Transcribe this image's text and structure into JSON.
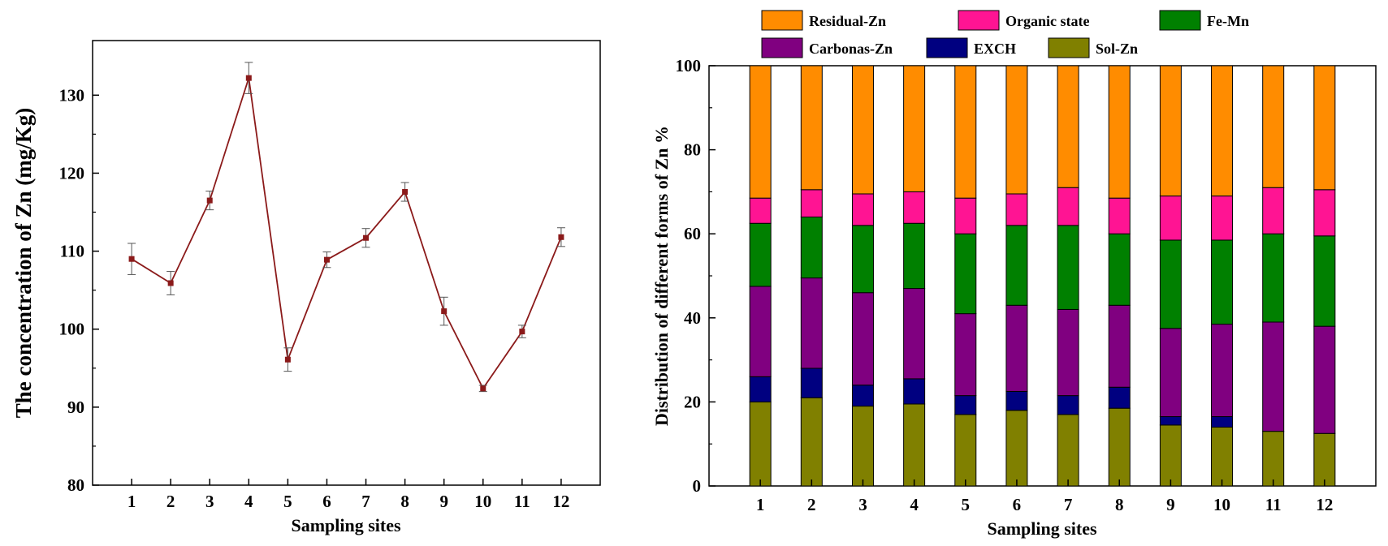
{
  "chart_data": [
    {
      "type": "line",
      "title": "",
      "xlabel": "Sampling sites",
      "ylabel": "The concentration of Zn (mg/Kg)",
      "categories": [
        "1",
        "2",
        "3",
        "4",
        "5",
        "6",
        "7",
        "8",
        "9",
        "10",
        "11",
        "12"
      ],
      "values": [
        109.0,
        105.9,
        116.5,
        132.2,
        96.1,
        108.9,
        111.7,
        117.6,
        102.3,
        92.4,
        99.7,
        111.8
      ],
      "errors": [
        2.0,
        1.5,
        1.2,
        2.0,
        1.5,
        1.0,
        1.2,
        1.2,
        1.8,
        0.4,
        0.8,
        1.2
      ],
      "ylim": [
        80,
        137
      ],
      "yticks": [
        80,
        90,
        100,
        110,
        120,
        130
      ],
      "color": "#8b1a1a",
      "grid": false
    },
    {
      "type": "bar",
      "stacked": true,
      "title": "",
      "xlabel": "Sampling sites",
      "ylabel": "Distribution of different forms of Zn  %",
      "categories": [
        "1",
        "2",
        "3",
        "4",
        "5",
        "6",
        "7",
        "8",
        "9",
        "10",
        "11",
        "12"
      ],
      "ylim": [
        0,
        100
      ],
      "yticks": [
        0,
        20,
        40,
        60,
        80,
        100
      ],
      "legend_position": "top",
      "legend_order": [
        "Residual-Zn",
        "Organic state",
        "Fe-Mn",
        "Carbonas-Zn",
        "EXCH",
        "Sol-Zn"
      ],
      "series": [
        {
          "name": "Sol-Zn",
          "color": "#808000",
          "values": [
            20,
            21,
            19,
            19.5,
            17,
            18,
            17,
            18.5,
            14.5,
            14,
            13,
            12.5
          ]
        },
        {
          "name": "EXCH",
          "color": "#000080",
          "values": [
            6,
            7,
            5,
            6,
            4.5,
            4.5,
            4.5,
            5,
            2,
            2.5,
            0,
            0
          ]
        },
        {
          "name": "Carbonas-Zn",
          "color": "#800080",
          "values": [
            21.5,
            21.5,
            22,
            21.5,
            19.5,
            20.5,
            20.5,
            19.5,
            21,
            22,
            26,
            25.5
          ]
        },
        {
          "name": "Fe-Mn",
          "color": "#008000",
          "values": [
            15,
            14.5,
            16,
            15.5,
            19,
            19,
            20,
            17,
            21,
            20,
            21,
            21.5
          ]
        },
        {
          "name": "Organic state",
          "color": "#ff1493",
          "values": [
            6,
            6.5,
            7.5,
            7.5,
            8.5,
            7.5,
            9,
            8.5,
            10.5,
            10.5,
            11,
            11
          ]
        },
        {
          "name": "Residual-Zn",
          "color": "#ff8c00",
          "values": [
            31.5,
            29.5,
            30.5,
            30,
            31.5,
            30.5,
            29,
            31.5,
            31,
            31,
            29,
            29.5
          ]
        }
      ],
      "grid": false
    }
  ]
}
